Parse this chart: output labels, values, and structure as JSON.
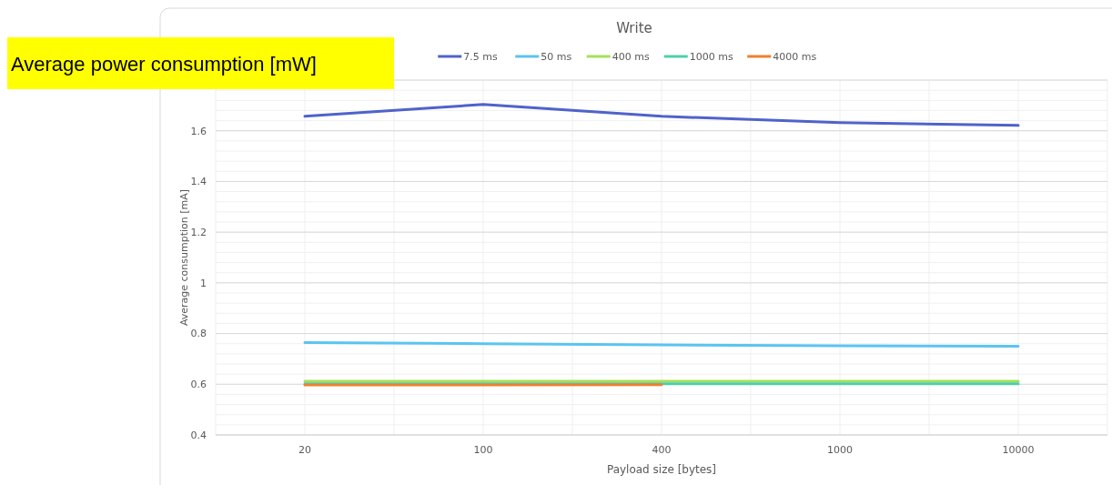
{
  "chart_data": {
    "type": "line",
    "title": "Write",
    "xlabel": "Payload size [bytes]",
    "ylabel": "Average consumption [mA]",
    "annotations": [
      "Average power consumption [mW]"
    ],
    "categories": [
      "20",
      "100",
      "400",
      "1000",
      "10000"
    ],
    "series": [
      {
        "name": "7.5 ms",
        "color": "#4f63c9",
        "values": [
          1.657,
          1.704,
          1.657,
          1.632,
          1.621
        ]
      },
      {
        "name": "50 ms",
        "color": "#5bc4f0",
        "values": [
          0.764,
          0.76,
          0.755,
          0.752,
          0.75
        ]
      },
      {
        "name": "400 ms",
        "color": "#a4e05a",
        "values": [
          0.612,
          0.612,
          0.612,
          0.612,
          0.612
        ]
      },
      {
        "name": "1000 ms",
        "color": "#4fcfa8",
        "values": [
          0.602,
          0.602,
          0.602,
          0.602,
          0.602
        ]
      },
      {
        "name": "4000 ms",
        "color": "#f07f2e",
        "values": [
          0.597,
          0.597,
          0.598,
          null,
          null
        ]
      }
    ],
    "ylim": [
      0.4,
      1.8
    ],
    "yticks": [
      0.4,
      0.6,
      0.8,
      1,
      1.2,
      1.4,
      1.6,
      {
        "value": 1.8,
        "label": null
      }
    ],
    "grid": true,
    "legend": "top",
    "line_style": "solid",
    "marker": "none"
  }
}
